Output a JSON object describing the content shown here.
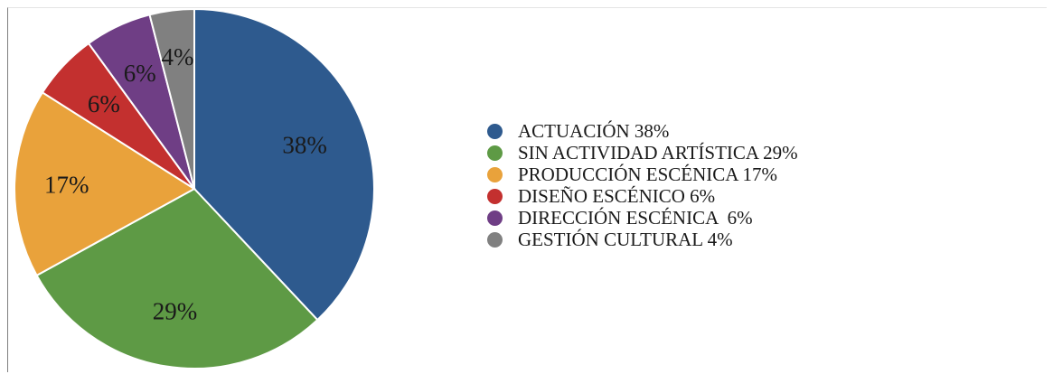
{
  "chart_data": {
    "type": "pie",
    "title": "",
    "legend_position": "right",
    "slices": [
      {
        "label": "38%",
        "legend": "ACTUACIÓN 38%",
        "value": 38,
        "color": "#2e5a8e"
      },
      {
        "label": "29%",
        "legend": "SIN ACTIVIDAD ARTÍSTICA 29%",
        "value": 29,
        "color": "#5e9a45"
      },
      {
        "label": "17%",
        "legend": "PRODUCCIÓN ESCÉNICA 17%",
        "value": 17,
        "color": "#e9a23b"
      },
      {
        "label": "6%",
        "legend": "DISEÑO ESCÉNICO 6%",
        "value": 6,
        "color": "#c3302f"
      },
      {
        "label": "6%",
        "legend": "DIRECCIÓN ESCÉNICA  6%",
        "value": 6,
        "color": "#6f3e85"
      },
      {
        "label": "4%",
        "legend": "GESTIÓN CULTURAL 4%",
        "value": 4,
        "color": "#808080"
      }
    ]
  }
}
